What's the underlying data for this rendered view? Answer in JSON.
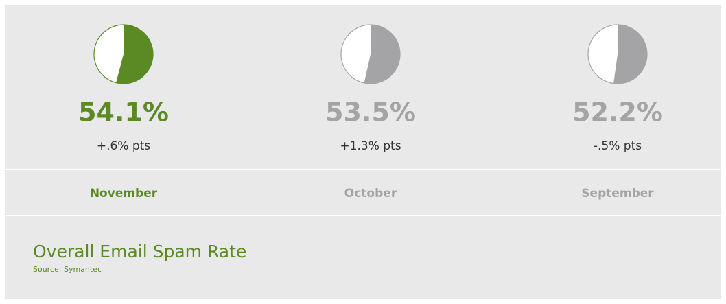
{
  "title": "Overall Email Spam Rate",
  "source": "Source: Symantec",
  "chart_data": [
    {
      "type": "pie",
      "categories": [
        "November"
      ],
      "values": [
        54.1
      ],
      "value_labels": [
        "54.1%"
      ],
      "annotation": "+.6% pts",
      "color": "#5b8a25"
    },
    {
      "type": "pie",
      "categories": [
        "October"
      ],
      "values": [
        53.5
      ],
      "value_labels": [
        "53.5%"
      ],
      "annotation": "+1.3% pts",
      "color": "#a4a4a6"
    },
    {
      "type": "pie",
      "categories": [
        "September"
      ],
      "values": [
        52.2
      ],
      "value_labels": [
        "52.2%"
      ],
      "annotation": "-.5% pts",
      "color": "#a4a4a6"
    }
  ]
}
